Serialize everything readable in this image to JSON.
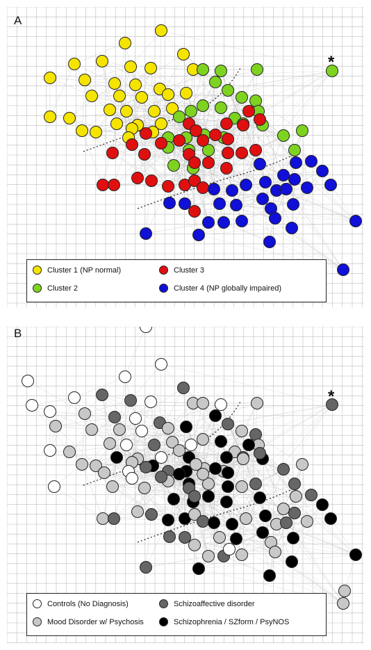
{
  "figure": {
    "panel_a": {
      "letter": "A",
      "star": "*",
      "legend": [
        {
          "label": "Cluster 1 (NP normal)",
          "color": "#f5e400"
        },
        {
          "label": "Cluster 3",
          "color": "#e01010"
        },
        {
          "label": "Cluster 2",
          "color": "#7ed321"
        },
        {
          "label": "Cluster 4 (NP globally impaired)",
          "color": "#1010d8"
        }
      ]
    },
    "panel_b": {
      "letter": "B",
      "star": "*",
      "legend": [
        {
          "label": "Controls (No Diagnosis)",
          "color": "#ffffff"
        },
        {
          "label": "Schizoaffective disorder",
          "color": "#666666"
        },
        {
          "label": "Mood Disorder w/ Psychosis",
          "color": "#c8c8c8"
        },
        {
          "label": "Schizophrenia / SZform / PsyNOS",
          "color": "#000000"
        }
      ]
    },
    "colors": {
      "grid": "#bdbdbd",
      "edges": "#c9c9c9",
      "node_stroke": "#222222",
      "divider": "#222222"
    }
  }
}
